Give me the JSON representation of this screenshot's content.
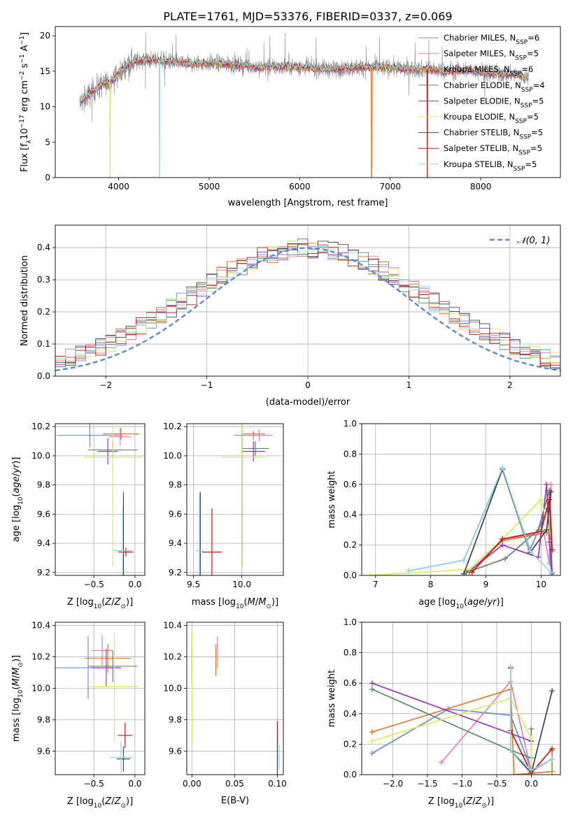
{
  "title": "PLATE=1761, MJD=53376, FIBERID=0337, z=0.069",
  "series_colors": [
    "#6a8fd6",
    "#e57fbf",
    "#e07a2a",
    "#5c8a6a",
    "#9b34b8",
    "#d7ec5a",
    "#444444",
    "#c01818",
    "#8fd9df"
  ],
  "legend_models": [
    {
      "base": "Chabrier MILES, N",
      "sub": "SSP",
      "val": "=6"
    },
    {
      "base": "Salpeter MILES, N",
      "sub": "SSP",
      "val": "=5"
    },
    {
      "base": "Kroupa MILES, N",
      "sub": "SSP",
      "val": "=6"
    },
    {
      "base": "Chabrier ELODIE, N",
      "sub": "SSP",
      "val": "=4"
    },
    {
      "base": "Salpeter ELODIE, N",
      "sub": "SSP",
      "val": "=5"
    },
    {
      "base": "Kroupa ELODIE, N",
      "sub": "SSP",
      "val": "=5"
    },
    {
      "base": "Chabrier STELIB, N",
      "sub": "SSP",
      "val": "=5"
    },
    {
      "base": "Salpeter STELIB, N",
      "sub": "SSP",
      "val": "=5"
    },
    {
      "base": "Kroupa STELIB, N",
      "sub": "SSP",
      "val": "=5"
    }
  ],
  "chart_data": [
    {
      "type": "line",
      "id": "spectrum",
      "xlabel": "wavelength [Angstrom, rest frame]",
      "ylabel": "Flux [f_λ 10^-17 erg cm^-2 s^-1 A^-1]",
      "xlim": [
        3300,
        8880
      ],
      "ylim": [
        0,
        21.3
      ],
      "xticks": [
        4000,
        5000,
        6000,
        7000,
        8000
      ],
      "yticks": [
        0,
        5,
        10,
        15,
        20
      ],
      "data_x_range": [
        3570,
        8530
      ],
      "spectrum_shape": {
        "x": [
          3570,
          3650,
          3700,
          3800,
          3900,
          4000,
          4100,
          4200,
          4400,
          4600,
          4800,
          5000,
          5200,
          5400,
          5600,
          5800,
          6000,
          6200,
          6400,
          6600,
          6800,
          7000,
          7200,
          7400,
          7600,
          7800,
          8000,
          8200,
          8400,
          8530
        ],
        "y": [
          10.5,
          11.5,
          12.0,
          13.0,
          13.5,
          14.5,
          16.0,
          16.5,
          16.6,
          16.3,
          16.0,
          16.2,
          16.0,
          15.8,
          15.5,
          15.7,
          15.6,
          15.4,
          15.3,
          15.5,
          15.6,
          15.5,
          15.3,
          15.3,
          15.0,
          15.2,
          15.0,
          14.6,
          14.6,
          14.0
        ]
      },
      "absorption_dips": [
        {
          "x": 3905,
          "series": 5
        },
        {
          "x": 4450,
          "series": 8
        },
        {
          "x": 6795,
          "series": 2
        },
        {
          "x": 7410,
          "series": 7
        }
      ],
      "grid": false,
      "legend_position": "top-right"
    },
    {
      "type": "step",
      "id": "residuals",
      "xlabel": "(data-model)/error",
      "ylabel": "Normed distribution",
      "xlim": [
        -2.5,
        2.5
      ],
      "ylim": [
        0,
        0.47
      ],
      "xticks": [
        -2,
        -1,
        0,
        1,
        2
      ],
      "yticks": [
        0.0,
        0.1,
        0.2,
        0.3,
        0.4
      ],
      "bins": 50,
      "normal_curve": {
        "mean": 0,
        "sigma": 1,
        "label": "𝒩(0, 1)"
      },
      "grid": true,
      "legend_position": "top-right"
    },
    {
      "type": "scatter",
      "id": "age-vs-Z",
      "xlabel": "Z [log10(Z/Z☉)]",
      "ylabel": "age [log10(age/yr)]",
      "xlim": [
        -0.97,
        0.12
      ],
      "ylim": [
        9.18,
        10.22
      ],
      "xticks": [
        -0.5,
        0.0
      ],
      "xtick_labels": [
        "−0.5",
        "0.0"
      ],
      "yticks": [
        9.2,
        9.4,
        9.6,
        9.8,
        10.0,
        10.2
      ],
      "points": [
        {
          "x": -0.55,
          "xerr": 0.4,
          "y": 10.14,
          "yerr": 0.08
        },
        {
          "x": -0.18,
          "xerr": 0.13,
          "y": 10.13,
          "yerr": 0.06
        },
        {
          "x": -0.17,
          "xerr": 0.22,
          "y": 10.15,
          "yerr": 0.04
        },
        {
          "x": -0.27,
          "xerr": 0.3,
          "y": 10.04,
          "yerr": 0.06
        },
        {
          "x": -0.33,
          "xerr": 0.12,
          "y": 10.03,
          "yerr": 0.09
        },
        {
          "x": -0.27,
          "xerr": 0.35,
          "y": 9.99,
          "yerr": 0.75
        },
        {
          "x": -0.14,
          "xerr": 0.1,
          "y": 9.35,
          "yerr": 0.4
        },
        {
          "x": -0.11,
          "xerr": 0.09,
          "y": 9.34,
          "yerr": 0.03
        },
        {
          "x": -0.15,
          "xerr": 0.12,
          "y": 9.35,
          "yerr": 0.3
        }
      ],
      "grid": true
    },
    {
      "type": "scatter",
      "id": "age-vs-mass",
      "xlabel": "mass [log10(M/M☉)]",
      "ylabel": "",
      "xlim": [
        9.43,
        10.43
      ],
      "ylim": [
        9.18,
        10.22
      ],
      "xticks": [
        9.5,
        10.0
      ],
      "xtick_labels": [
        "9.5",
        "10.0"
      ],
      "yticks": [
        9.2,
        9.4,
        9.6,
        9.8,
        10.0,
        10.2
      ],
      "points": [
        {
          "x": 10.12,
          "xerr": 0.2,
          "y": 10.14,
          "yerr": 0.03
        },
        {
          "x": 10.18,
          "xerr": 0.12,
          "y": 10.14,
          "yerr": 0.04
        },
        {
          "x": 10.12,
          "xerr": 0.12,
          "y": 10.15,
          "yerr": 0.02
        },
        {
          "x": 10.14,
          "xerr": 0.14,
          "y": 10.05,
          "yerr": 0.05
        },
        {
          "x": 10.12,
          "xerr": 0.12,
          "y": 10.03,
          "yerr": 0.07
        },
        {
          "x": 10.01,
          "xerr": 0.22,
          "y": 9.99,
          "yerr": 0.75
        },
        {
          "x": 9.57,
          "xerr": 0.03,
          "y": 9.35,
          "yerr": 0.4
        },
        {
          "x": 9.69,
          "xerr": 0.1,
          "y": 9.34,
          "yerr": 0.3
        },
        {
          "x": 9.56,
          "xerr": 0.04,
          "y": 9.35,
          "yerr": 0.4
        }
      ],
      "grid": true
    },
    {
      "type": "line",
      "id": "massweight-vs-age",
      "xlabel": "age [log10(age/yr)]",
      "ylabel": "mass weight",
      "xlim": [
        6.75,
        10.35
      ],
      "ylim": [
        0,
        1.0
      ],
      "xticks": [
        7,
        8,
        9,
        10
      ],
      "yticks": [
        0.0,
        0.2,
        0.4,
        0.6,
        0.8,
        1.0
      ],
      "series": [
        {
          "x": [
            7.6,
            8.6,
            9.3,
            9.8,
            10.12,
            10.18
          ],
          "y": [
            0.03,
            0.1,
            0.7,
            0.17,
            0.44,
            0.02
          ]
        },
        {
          "x": [
            8.7,
            9.3,
            10.05,
            10.15,
            10.18
          ],
          "y": [
            0.02,
            0.24,
            0.28,
            0.08,
            0.6
          ]
        },
        {
          "x": [
            8.7,
            9.3,
            10.1,
            10.16,
            10.2
          ],
          "y": [
            0.02,
            0.23,
            0.28,
            0.56,
            0.16
          ]
        },
        {
          "x": [
            8.65,
            9.35,
            9.95,
            10.15,
            10.2
          ],
          "y": [
            0.02,
            0.11,
            0.3,
            0.56,
            0.01
          ]
        },
        {
          "x": [
            8.7,
            9.3,
            9.95,
            10.1,
            10.15,
            10.2
          ],
          "y": [
            0.03,
            0.2,
            0.12,
            0.6,
            0.22,
            0.02
          ]
        },
        {
          "x": [
            6.9,
            8.7,
            9.3,
            10.0,
            10.2
          ],
          "y": [
            0.0,
            0.04,
            0.24,
            0.5,
            0.23
          ]
        },
        {
          "x": [
            8.6,
            9.3,
            9.8,
            10.1,
            10.18
          ],
          "y": [
            0.01,
            0.7,
            0.15,
            0.3,
            0.55
          ]
        },
        {
          "x": [
            8.75,
            9.3,
            10.0,
            10.15,
            10.2
          ],
          "y": [
            0.02,
            0.24,
            0.29,
            0.5,
            0.17
          ]
        },
        {
          "x": [
            7.6,
            8.6,
            9.3,
            9.8,
            10.18
          ],
          "y": [
            0.03,
            0.1,
            0.71,
            0.16,
            0.02
          ]
        }
      ],
      "grid": true
    },
    {
      "type": "scatter",
      "id": "mass-vs-Z",
      "xlabel": "Z [log10(Z/Z☉)]",
      "ylabel": "mass [log10(M/M☉)]",
      "xlim": [
        -0.97,
        0.12
      ],
      "ylim": [
        9.45,
        10.42
      ],
      "xticks": [
        -0.5,
        0.0
      ],
      "xtick_labels": [
        "−0.5",
        "0.0"
      ],
      "yticks": [
        9.6,
        9.8,
        10.0,
        10.2,
        10.4
      ],
      "points": [
        {
          "x": -0.57,
          "xerr": 0.4,
          "y": 10.13,
          "yerr": 0.2
        },
        {
          "x": -0.4,
          "xerr": 0.13,
          "y": 10.24,
          "yerr": 0.1
        },
        {
          "x": -0.33,
          "xerr": 0.28,
          "y": 10.19,
          "yerr": 0.09
        },
        {
          "x": -0.27,
          "xerr": 0.3,
          "y": 10.14,
          "yerr": 0.1
        },
        {
          "x": -0.35,
          "xerr": 0.18,
          "y": 10.13,
          "yerr": 0.12
        },
        {
          "x": -0.25,
          "xerr": 0.3,
          "y": 10.01,
          "yerr": 0.35
        },
        {
          "x": -0.14,
          "xerr": 0.08,
          "y": 9.55,
          "yerr": 0.08
        },
        {
          "x": -0.12,
          "xerr": 0.09,
          "y": 9.7,
          "yerr": 0.08
        },
        {
          "x": -0.17,
          "xerr": 0.14,
          "y": 9.56,
          "yerr": 0.1
        }
      ],
      "grid": true
    },
    {
      "type": "scatter",
      "id": "mass-vs-EBV",
      "xlabel": "E(B-V)",
      "ylabel": "",
      "xlim": [
        -0.006,
        0.107
      ],
      "ylim": [
        9.45,
        10.42
      ],
      "xticks": [
        0.0,
        0.05,
        0.1
      ],
      "xtick_labels": [
        "0.00",
        "0.05",
        "0.10"
      ],
      "yticks": [
        9.6,
        9.8,
        10.0,
        10.2,
        10.4
      ],
      "points": [
        {
          "x": 0.0,
          "y": 10.13,
          "yerr": 0.08
        },
        {
          "x": 0.03,
          "y": 10.23,
          "yerr": 0.1
        },
        {
          "x": 0.028,
          "y": 10.18,
          "yerr": 0.1
        },
        {
          "x": 0.0,
          "y": 10.13,
          "yerr": 0.1
        },
        {
          "x": 0.0,
          "y": 10.24,
          "yerr": 0.1
        },
        {
          "x": 0.0,
          "y": 10.01,
          "yerr": 0.35
        },
        {
          "x": 0.1,
          "y": 9.55,
          "yerr": 0.1
        },
        {
          "x": 0.1,
          "y": 9.72,
          "yerr": 0.07
        },
        {
          "x": 0.102,
          "y": 9.56,
          "yerr": 0.08
        }
      ],
      "grid": true
    },
    {
      "type": "line",
      "id": "massweight-vs-Z",
      "xlabel": "Z [log10(Z/Z☉)]",
      "ylabel": "mass weight",
      "xlim": [
        -2.45,
        0.42
      ],
      "ylim": [
        0,
        1.0
      ],
      "xticks": [
        -2.0,
        -1.5,
        -1.0,
        -0.5,
        0.0
      ],
      "xtick_labels": [
        "−2.0",
        "−1.5",
        "−1.0",
        "−0.5",
        "0.0"
      ],
      "yticks": [
        0.0,
        0.2,
        0.4,
        0.6,
        0.8,
        1.0
      ],
      "series": [
        {
          "x": [
            -2.3,
            -1.2,
            -0.3,
            0.0,
            0.3
          ],
          "y": [
            0.14,
            0.43,
            0.39,
            0.03,
            0.1
          ]
        },
        {
          "x": [
            -1.3,
            -0.3,
            0.0,
            0.3
          ],
          "y": [
            0.08,
            0.61,
            0.02,
            0.1
          ]
        },
        {
          "x": [
            -2.3,
            -0.3,
            -0.25,
            0.3,
            0.3
          ],
          "y": [
            0.28,
            0.56,
            0.0,
            0.02,
            0.16
          ]
        },
        {
          "x": [
            -2.3,
            -0.3,
            0.0,
            0.0
          ],
          "y": [
            0.56,
            0.16,
            0.11,
            0.3
          ]
        },
        {
          "x": [
            -2.3,
            0.0
          ],
          "y": [
            0.6,
            0.22
          ]
        },
        {
          "x": [
            -2.3,
            -0.3,
            0.0,
            0.0
          ],
          "y": [
            0.22,
            0.5,
            0.24,
            0.0
          ]
        },
        {
          "x": [
            -0.3,
            -0.3,
            0.0,
            0.3
          ],
          "y": [
            0.7,
            0.16,
            0.01,
            0.55
          ]
        },
        {
          "x": [
            -0.3,
            0.0,
            0.3
          ],
          "y": [
            0.29,
            0.01,
            0.17
          ]
        },
        {
          "x": [
            -0.3,
            -0.3,
            0.0,
            0.3
          ],
          "y": [
            0.71,
            0.16,
            0.03,
            0.1
          ]
        }
      ],
      "grid": true
    }
  ]
}
